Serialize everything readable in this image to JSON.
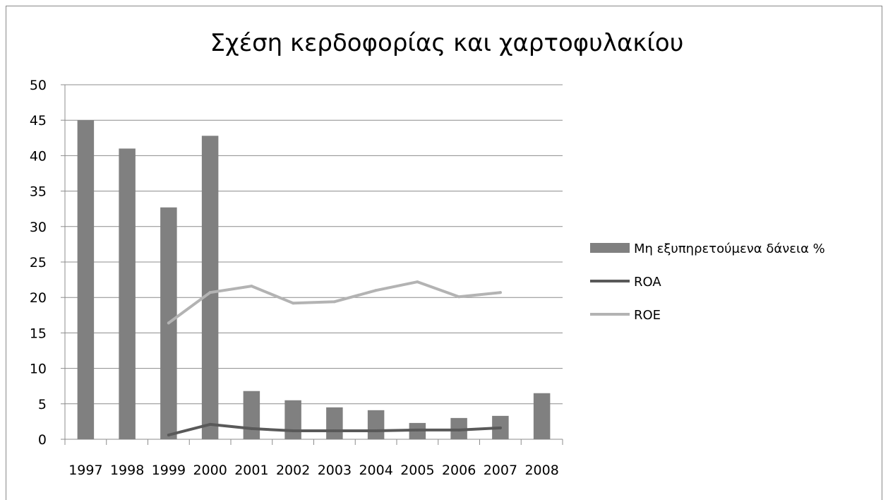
{
  "chart_data": {
    "type": "bar",
    "title": "Σχέση κερδοφορίας και χαρτοφυλακίου",
    "xlabel": "",
    "ylabel": "",
    "categories": [
      "1997",
      "1998",
      "1999",
      "2000",
      "2001",
      "2002",
      "2003",
      "2004",
      "2005",
      "2006",
      "2007",
      "2008"
    ],
    "ylim": [
      0,
      50
    ],
    "yticks": [
      0,
      5,
      10,
      15,
      20,
      25,
      30,
      35,
      40,
      45,
      50
    ],
    "grid": true,
    "legend_position": "right",
    "series": [
      {
        "name": "Μη εξυπηρετούμενα δάνεια %",
        "type": "bar",
        "color": "#808080",
        "values": [
          45.0,
          41.0,
          32.7,
          42.8,
          6.8,
          5.5,
          4.5,
          4.1,
          2.3,
          3.0,
          3.3,
          6.5
        ]
      },
      {
        "name": "ROA",
        "type": "line",
        "color": "#595959",
        "values": [
          null,
          null,
          0.6,
          2.1,
          1.5,
          1.2,
          1.2,
          1.2,
          1.3,
          1.3,
          1.6,
          null
        ]
      },
      {
        "name": "ROE",
        "type": "line",
        "color": "#b3b3b3",
        "values": [
          null,
          null,
          16.4,
          20.7,
          21.6,
          19.2,
          19.4,
          21.0,
          22.2,
          20.1,
          20.7,
          null
        ]
      }
    ]
  }
}
